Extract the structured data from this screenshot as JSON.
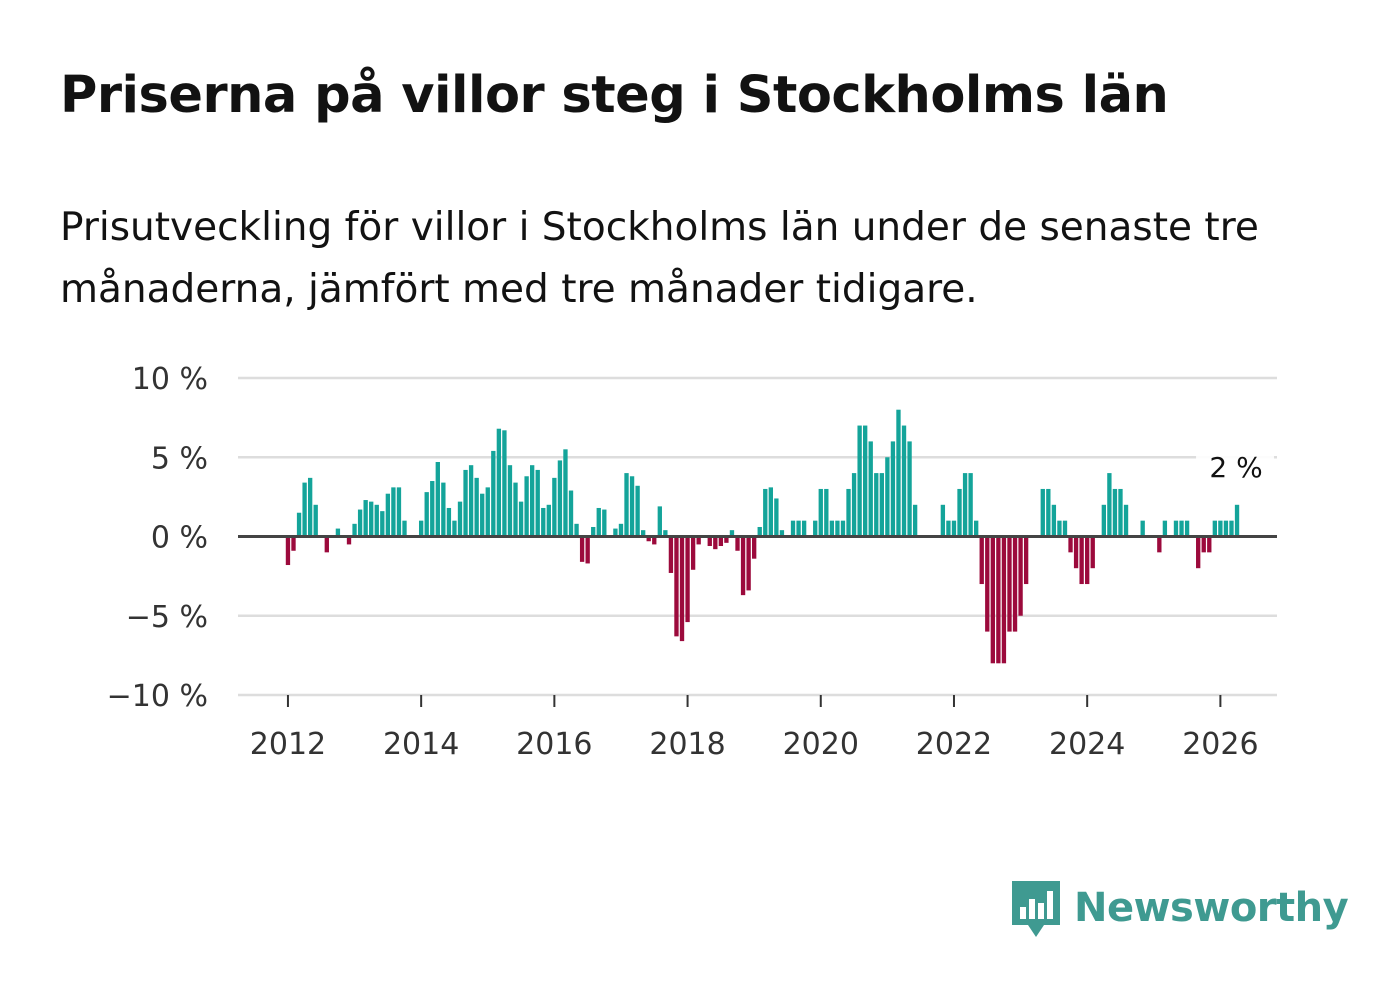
{
  "title": "Priserna på villor steg i Stockholms län",
  "subtitle": "Prisutveckling för villor i Stockholms län under de senaste tre månaderna, jämfört med tre månader tidigare.",
  "brand": "Newsworthy",
  "colors": {
    "positive": "#14a49a",
    "negative": "#9c0a3c",
    "grid": "#dddddd",
    "zero": "#444444",
    "brand": "#3f9a91"
  },
  "chart_data": {
    "type": "bar",
    "title": "Priserna på villor steg i Stockholms län",
    "ylabel": "",
    "xlabel": "",
    "ylim": [
      -10,
      10
    ],
    "xlim": [
      2011.25,
      2026.85
    ],
    "y_ticks": [
      10,
      5,
      0,
      -5,
      -10
    ],
    "y_tick_labels": [
      "10 %",
      "5 %",
      "0 %",
      "−5 %",
      "−10 %"
    ],
    "x_ticks": [
      2012,
      2014,
      2016,
      2018,
      2020,
      2022,
      2024,
      2026
    ],
    "x_tick_labels": [
      "2012",
      "2014",
      "2016",
      "2018",
      "2020",
      "2022",
      "2024",
      "2026"
    ],
    "start": {
      "year": 2012,
      "month": 1
    },
    "last_value_label": "2 %",
    "values": [
      -1.8,
      -0.9,
      1.5,
      3.4,
      3.7,
      2.0,
      0.0,
      -1.0,
      0.0,
      0.5,
      0.0,
      -0.5,
      0.8,
      1.7,
      2.3,
      2.2,
      2.0,
      1.6,
      2.7,
      3.1,
      3.1,
      1.0,
      0.0,
      0.0,
      1.0,
      2.8,
      3.5,
      4.7,
      3.4,
      1.8,
      1.0,
      2.2,
      4.2,
      4.5,
      3.7,
      2.7,
      3.1,
      5.4,
      6.8,
      6.7,
      4.5,
      3.4,
      2.2,
      3.8,
      4.5,
      4.2,
      1.8,
      2.0,
      3.7,
      4.8,
      5.5,
      2.9,
      0.8,
      -1.6,
      -1.7,
      0.6,
      1.8,
      1.7,
      0.0,
      0.5,
      0.8,
      4.0,
      3.8,
      3.2,
      0.4,
      -0.3,
      -0.5,
      1.9,
      0.4,
      -2.3,
      -6.3,
      -6.6,
      -5.4,
      -2.1,
      -0.5,
      0.0,
      -0.6,
      -0.8,
      -0.6,
      -0.4,
      0.4,
      -0.9,
      -3.7,
      -3.4,
      -1.4,
      0.6,
      3.0,
      3.1,
      2.4,
      0.4,
      0.0,
      1.0,
      1.0,
      1.0,
      0.0,
      1.0,
      3.0,
      3.0,
      1.0,
      1.0,
      1.0,
      3.0,
      4.0,
      7.0,
      7.0,
      6.0,
      4.0,
      4.0,
      5.0,
      6.0,
      8.0,
      7.0,
      6.0,
      2.0,
      0.0,
      0.0,
      0.0,
      0.0,
      2.0,
      1.0,
      1.0,
      3.0,
      4.0,
      4.0,
      1.0,
      -3.0,
      -6.0,
      -8.0,
      -8.0,
      -8.0,
      -6.0,
      -6.0,
      -5.0,
      -3.0,
      0.0,
      0.0,
      3.0,
      3.0,
      2.0,
      1.0,
      1.0,
      -1.0,
      -2.0,
      -3.0,
      -3.0,
      -2.0,
      0.0,
      2.0,
      4.0,
      3.0,
      3.0,
      2.0,
      0.0,
      0.0,
      1.0,
      0.0,
      0.0,
      -1.0,
      1.0,
      0.0,
      1.0,
      1.0,
      1.0,
      0.0,
      -2.0,
      -1.0,
      -1.0,
      1.0,
      1.0,
      1.0,
      1.0,
      2.0
    ]
  }
}
